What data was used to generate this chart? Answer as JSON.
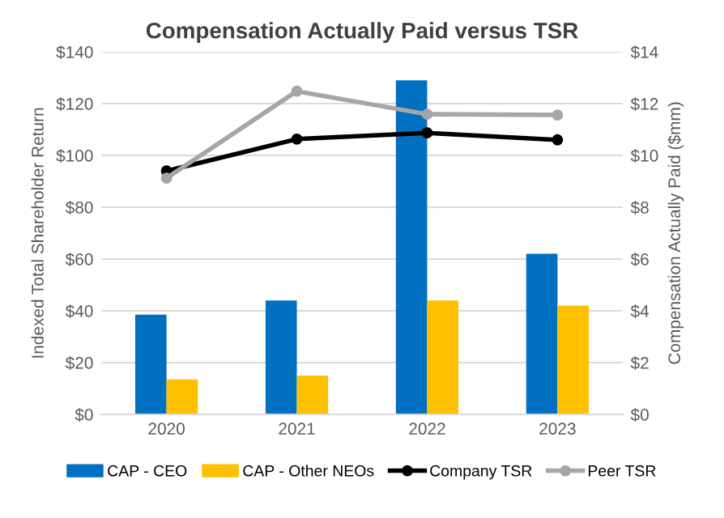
{
  "chart_data": {
    "type": "bar",
    "title": "Compensation Actually Paid versus TSR",
    "ylabel": "Indexed Total Shareholder Return",
    "y2label": "Compensation Actually Paid ($mm)",
    "categories": [
      "2020",
      "2021",
      "2022",
      "2023"
    ],
    "series": [
      {
        "name": "CAP - CEO",
        "color": "#0070c0",
        "values": [
          3.85,
          4.4,
          12.9,
          6.2
        ],
        "axis": "y2"
      },
      {
        "name": "CAP - Other NEOs",
        "color": "#ffc000",
        "values": [
          1.35,
          1.5,
          4.4,
          4.2
        ],
        "axis": "y2"
      },
      {
        "name": "Company TSR",
        "type": "line",
        "color": "#000000",
        "values": [
          94,
          106.3,
          108.7,
          106
        ],
        "axis": "y",
        "marker": "circle"
      },
      {
        "name": "Peer TSR",
        "type": "line",
        "color": "#a6a6a6",
        "values": [
          91.2,
          124.8,
          115.9,
          115.6
        ],
        "axis": "y",
        "marker": "circle"
      }
    ],
    "ylim": [
      0,
      140
    ],
    "yticks": [
      {
        "value": 0,
        "label": "$0"
      },
      {
        "value": 20,
        "label": "$20"
      },
      {
        "value": 40,
        "label": "$40"
      },
      {
        "value": 60,
        "label": "$60"
      },
      {
        "value": 80,
        "label": "$80"
      },
      {
        "value": 100,
        "label": "$100"
      },
      {
        "value": 120,
        "label": "$120"
      },
      {
        "value": 140,
        "label": "$140"
      }
    ],
    "y2lim": [
      0,
      14
    ],
    "y2ticks": [
      {
        "value": 0,
        "label": "$0"
      },
      {
        "value": 2,
        "label": "$2"
      },
      {
        "value": 4,
        "label": "$4"
      },
      {
        "value": 6,
        "label": "$6"
      },
      {
        "value": 8,
        "label": "$8"
      },
      {
        "value": 10,
        "label": "$10"
      },
      {
        "value": 12,
        "label": "$12"
      },
      {
        "value": 14,
        "label": "$14"
      }
    ],
    "grid": "y",
    "legend": "bottom"
  }
}
